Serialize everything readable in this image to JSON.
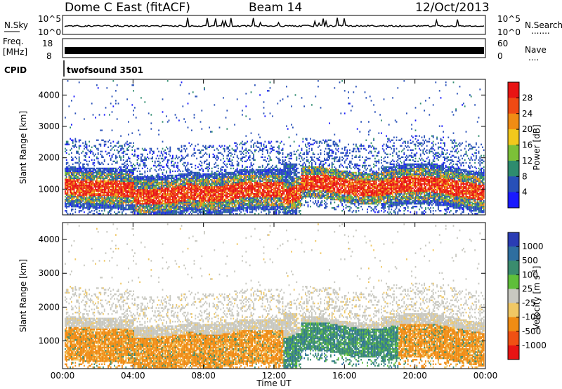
{
  "header": {
    "station": "Dome C East (fitACF)",
    "beam": "Beam 14",
    "date": "12/Oct/2013"
  },
  "strips": {
    "nsky_label": "N.Sky",
    "nsearch_label": "N.Search",
    "nsearch_dots": ".......",
    "freq_label": "Freq.",
    "freq_unit": "[MHz]",
    "nave_label": "Nave",
    "nave_dots": "....",
    "cpid_label": "CPID",
    "cpid_value": "twofsound 3501",
    "noise_ticks_left": [
      "10^5",
      "10^0"
    ],
    "noise_ticks_right": [
      "10^5",
      "10^0"
    ],
    "freq_ticks": [
      "18",
      "8"
    ],
    "nave_ticks": [
      "60",
      "0"
    ]
  },
  "chart_data": [
    {
      "type": "heatmap",
      "name": "power-panel",
      "ylabel": "Slant Range [km]",
      "yticks": [
        1000,
        2000,
        3000,
        4000
      ],
      "ylim": [
        180,
        4500
      ],
      "xlim": [
        0,
        24
      ],
      "colorbar_label": "Power [dB]",
      "colorbar_ticks": [
        4,
        8,
        12,
        16,
        20,
        24,
        28
      ],
      "colorbar_range": [
        0,
        32
      ],
      "colorbar_colors": [
        "#1a1aff",
        "#2850b8",
        "#2e8c6e",
        "#7cc038",
        "#f2c81c",
        "#f08c14",
        "#f04a14",
        "#e81414"
      ]
    },
    {
      "type": "heatmap",
      "name": "velocity-panel",
      "ylabel": "Slant Range [km]",
      "yticks": [
        1000,
        2000,
        3000,
        4000
      ],
      "ylim": [
        180,
        4500
      ],
      "xlim": [
        0,
        24
      ],
      "colorbar_label": "Velocity [m s^-1]",
      "colorbar_ticks": [
        "1000",
        "500",
        "100",
        "25",
        "-25",
        "-100",
        "-500",
        "-1000"
      ],
      "colorbar_colors": [
        "#2a3cb4",
        "#2e6ea0",
        "#3a8c6e",
        "#5fbf3a",
        "#c8c8c0",
        "#f0c864",
        "#f08c14",
        "#f05014",
        "#e81414"
      ]
    }
  ],
  "xaxis": {
    "label": "Time UT",
    "ticks": [
      "00:00",
      "04:00",
      "08:00",
      "12:00",
      "16:00",
      "20:00",
      "00:00"
    ]
  }
}
